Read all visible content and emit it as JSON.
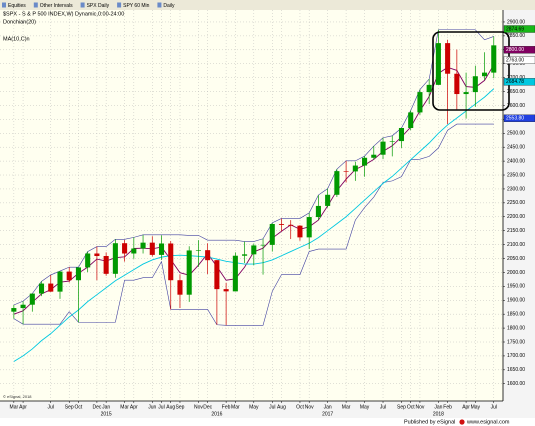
{
  "toolbar": {
    "items": [
      "Equities",
      "Other Intervals",
      "SPX Daily",
      "SPY 60 Min",
      "Daily"
    ]
  },
  "footer": {
    "published": "Published by eSignal",
    "site": "www.esignal.com",
    "copyright": "© eSignal, 2018"
  },
  "chart_data": {
    "type": "candlestick",
    "title": "$SPX - S & P 500 INDEX,W) Dynamic,0:00-24:00",
    "studies": [
      {
        "label": "Donchian(20)",
        "color": "#000000"
      },
      {
        "label": "MA(10,C)n",
        "color": "#00c8e0"
      }
    ],
    "categories": [
      "Mar 2014",
      "Apr 2014",
      "May 2014",
      "Jun 2014",
      "Jul 2014",
      "Aug 2014",
      "Sep 2014",
      "Oct 2014",
      "Nov 2014",
      "Dec 2014",
      "Jan 2015",
      "Feb 2015",
      "Mar 2015",
      "Apr 2015",
      "May 2015",
      "Jun 2015",
      "Jul 2015",
      "Aug 2015",
      "Sep 2015",
      "Oct 2015",
      "Nov 2015",
      "Dec 2015",
      "Jan 2016",
      "Feb 2016",
      "Mar 2016",
      "Apr 2016",
      "May 2016",
      "Jun 2016",
      "Jul 2016",
      "Aug 2016",
      "Sep 2016",
      "Oct 2016",
      "Nov 2016",
      "Dec 2016",
      "Jan 2017",
      "Feb 2017",
      "Mar 2017",
      "Apr 2017",
      "May 2017",
      "Jun 2017",
      "Jul 2017",
      "Aug 2017",
      "Sep 2017",
      "Oct 2017",
      "Nov 2017",
      "Dec 2017",
      "Jan 2018",
      "Feb 2018",
      "Mar 2018",
      "Apr 2018",
      "May 2018",
      "Jun 2018",
      "Jul 2018"
    ],
    "open": [
      1859,
      1872,
      1884,
      1924,
      1960,
      1931,
      2003,
      1972,
      2018,
      2068,
      2059,
      1995,
      2105,
      2068,
      2086,
      2107,
      2063,
      2104,
      1972,
      1920,
      2079,
      2080,
      2044,
      1940,
      1932,
      2060,
      2065,
      2097,
      2099,
      2174,
      2171,
      2168,
      2126,
      2199,
      2239,
      2279,
      2364,
      2363,
      2384,
      2412,
      2423,
      2470,
      2472,
      2519,
      2575,
      2648,
      2674,
      2824,
      2714,
      2641,
      2648,
      2705,
      2718
    ],
    "high": [
      1883,
      1897,
      1924,
      1968,
      1991,
      2005,
      2019,
      2018,
      2075,
      2093,
      2072,
      2119,
      2117,
      2126,
      2135,
      2130,
      2133,
      2113,
      1993,
      2094,
      2116,
      2105,
      2044,
      1963,
      2072,
      2111,
      2104,
      2121,
      2178,
      2194,
      2188,
      2170,
      2214,
      2278,
      2301,
      2371,
      2401,
      2398,
      2418,
      2454,
      2484,
      2491,
      2519,
      2582,
      2657,
      2695,
      2872,
      2836,
      2801,
      2718,
      2743,
      2791,
      2848
    ],
    "low": [
      1834,
      1814,
      1859,
      1915,
      1930,
      1905,
      1964,
      1821,
      2001,
      1972,
      1988,
      1981,
      2039,
      2049,
      2068,
      2057,
      2045,
      1867,
      1872,
      1894,
      2020,
      1994,
      1812,
      1810,
      1932,
      2034,
      2026,
      1992,
      2075,
      2148,
      2120,
      2114,
      2084,
      2188,
      2233,
      2271,
      2323,
      2329,
      2344,
      2405,
      2407,
      2417,
      2447,
      2511,
      2566,
      2605,
      2674,
      2533,
      2586,
      2553,
      2595,
      2691,
      2698
    ],
    "close": [
      1872,
      1884,
      1924,
      1960,
      1931,
      2003,
      1972,
      2018,
      2068,
      2059,
      1995,
      2105,
      2068,
      2086,
      2107,
      2063,
      2104,
      1972,
      1920,
      2079,
      2080,
      2044,
      1940,
      1932,
      2060,
      2065,
      2097,
      2099,
      2174,
      2171,
      2168,
      2126,
      2199,
      2239,
      2279,
      2364,
      2363,
      2384,
      2412,
      2423,
      2470,
      2472,
      2519,
      2575,
      2648,
      2674,
      2824,
      2714,
      2641,
      2648,
      2705,
      2718,
      2816
    ],
    "up_color": "#009900",
    "down_color": "#cc0000",
    "series": [
      {
        "name": "Donchian upper",
        "color": "#4040a0",
        "values": [
          1883,
          1897,
          1924,
          1968,
          1991,
          2005,
          2019,
          2019,
          2075,
          2093,
          2093,
          2119,
          2119,
          2126,
          2135,
          2135,
          2135,
          2135,
          2135,
          2133,
          2133,
          2116,
          2116,
          2116,
          2116,
          2111,
          2111,
          2121,
          2178,
          2194,
          2194,
          2194,
          2214,
          2278,
          2301,
          2371,
          2401,
          2401,
          2418,
          2454,
          2484,
          2491,
          2519,
          2582,
          2657,
          2695,
          2872,
          2872,
          2872,
          2872,
          2872,
          2836,
          2848
        ]
      },
      {
        "name": "Donchian lower",
        "color": "#4040a0",
        "values": [
          1834,
          1814,
          1814,
          1814,
          1814,
          1814,
          1859,
          1821,
          1821,
          1821,
          1821,
          1821,
          1972,
          1972,
          1981,
          1981,
          2039,
          1867,
          1867,
          1867,
          1867,
          1867,
          1812,
          1810,
          1810,
          1810,
          1810,
          1810,
          1932,
          1992,
          1992,
          1992,
          2075,
          2084,
          2084,
          2084,
          2084,
          2188,
          2233,
          2271,
          2323,
          2329,
          2344,
          2405,
          2407,
          2417,
          2447,
          2511,
          2533,
          2533,
          2533,
          2533,
          2533
        ]
      },
      {
        "name": "MA fast",
        "color": "#800060",
        "values": [
          1850,
          1862,
          1893,
          1923,
          1938,
          1965,
          1969,
          1997,
          2019,
          2048,
          2041,
          2053,
          2056,
          2086,
          2087,
          2085,
          2091,
          2046,
          1999,
          1990,
          2026,
          2068,
          2021,
          1972,
          1977,
          2019,
          2074,
          2087,
          2123,
          2148,
          2171,
          2155,
          2164,
          2188,
          2239,
          2294,
          2335,
          2370,
          2386,
          2406,
          2435,
          2455,
          2487,
          2522,
          2581,
          2632,
          2715,
          2737,
          2726,
          2668,
          2665,
          2690,
          2746
        ]
      },
      {
        "name": "MA slow",
        "color": "#00c8e0",
        "values": [
          1680,
          1700,
          1725,
          1755,
          1780,
          1810,
          1840,
          1865,
          1895,
          1920,
          1945,
          1970,
          1990,
          2010,
          2030,
          2045,
          2055,
          2060,
          2062,
          2060,
          2058,
          2055,
          2048,
          2040,
          2035,
          2030,
          2030,
          2035,
          2045,
          2060,
          2075,
          2090,
          2105,
          2125,
          2150,
          2175,
          2200,
          2230,
          2260,
          2290,
          2320,
          2345,
          2375,
          2405,
          2435,
          2465,
          2500,
          2530,
          2555,
          2580,
          2605,
          2630,
          2660
        ]
      }
    ],
    "price_tags": [
      {
        "value": 2874.69,
        "label": "2874.69",
        "color": "#18b818"
      },
      {
        "value": 2800,
        "label": "2800.00",
        "color": "#800060"
      },
      {
        "value": 2763,
        "label": "2763.00",
        "color": "#ffffff"
      },
      {
        "value": 2684.78,
        "label": "2684.78",
        "color": "#00c8e0"
      },
      {
        "value": 2553.8,
        "label": "2553.80",
        "color": "#2040e0"
      }
    ],
    "ylim": [
      1538,
      2943
    ],
    "yticks": [
      {
        "value": 1600,
        "label": "1600.00"
      },
      {
        "value": 1650,
        "label": "1650.00"
      },
      {
        "value": 1700,
        "label": "1700.00"
      },
      {
        "value": 1750,
        "label": "1750.00"
      },
      {
        "value": 1800,
        "label": "1800.00"
      },
      {
        "value": 1850,
        "label": "1850.00"
      },
      {
        "value": 1900,
        "label": "1900.00"
      },
      {
        "value": 1950,
        "label": "1950.00"
      },
      {
        "value": 2000,
        "label": "2000.00"
      },
      {
        "value": 2050,
        "label": "2050.00"
      },
      {
        "value": 2100,
        "label": "2100.00"
      },
      {
        "value": 2150,
        "label": "2150.00"
      },
      {
        "value": 2200,
        "label": "2200.00"
      },
      {
        "value": 2250,
        "label": "2250.00"
      },
      {
        "value": 2300,
        "label": "2300.00"
      },
      {
        "value": 2350,
        "label": "2350.00"
      },
      {
        "value": 2400,
        "label": "2400.00"
      },
      {
        "value": 2450,
        "label": "2450.00"
      },
      {
        "value": 2500,
        "label": "2500.00"
      },
      {
        "value": 2550,
        "label": "2550.00"
      },
      {
        "value": 2600,
        "label": "2600.00"
      },
      {
        "value": 2650,
        "label": "2650.00"
      },
      {
        "value": 2700,
        "label": "2700.00"
      },
      {
        "value": 2750,
        "label": "2750.00"
      },
      {
        "value": 2800,
        "label": "2800.00"
      },
      {
        "value": 2850,
        "label": "2850.00"
      },
      {
        "value": 2900,
        "label": "2900.00"
      }
    ],
    "xticks": [
      {
        "value": "Mar 2014",
        "label": "Mar"
      },
      {
        "value": "Apr 2014",
        "label": "Apr"
      },
      {
        "value": "Jul 2014",
        "label": "Jul"
      },
      {
        "value": "Sep 2014",
        "label": "Sep"
      },
      {
        "value": "Oct 2014",
        "label": "Oct"
      },
      {
        "value": "Dec 2014",
        "label": "Dec"
      },
      {
        "value": "Jan 2015",
        "label": "Jan"
      },
      {
        "value": "Mar 2015",
        "label": "Mar"
      },
      {
        "value": "Apr 2015",
        "label": "Apr"
      },
      {
        "value": "Jun 2015",
        "label": "Jun"
      },
      {
        "value": "Jul 2015",
        "label": "Jul"
      },
      {
        "value": "Aug 2015",
        "label": "Aug"
      },
      {
        "value": "Sep 2015",
        "label": "Sep"
      },
      {
        "value": "Nov 2015",
        "label": "Nov"
      },
      {
        "value": "Dec 2015",
        "label": "Dec"
      },
      {
        "value": "Feb 2016",
        "label": "Feb"
      },
      {
        "value": "Mar 2016",
        "label": "Mar"
      },
      {
        "value": "May 2016",
        "label": "May"
      },
      {
        "value": "Jul 2016",
        "label": "Jul"
      },
      {
        "value": "Aug 2016",
        "label": "Aug"
      },
      {
        "value": "Oct 2016",
        "label": "Oct"
      },
      {
        "value": "Nov 2016",
        "label": "Nov"
      },
      {
        "value": "Jan 2017",
        "label": "Jan"
      },
      {
        "value": "Mar 2017",
        "label": "Mar"
      },
      {
        "value": "May 2017",
        "label": "May"
      },
      {
        "value": "Jul 2017",
        "label": "Jul"
      },
      {
        "value": "Sep 2017",
        "label": "Sep"
      },
      {
        "value": "Oct 2017",
        "label": "Oct"
      },
      {
        "value": "Nov 2017",
        "label": "Nov"
      },
      {
        "value": "Jan 2018",
        "label": "Jan"
      },
      {
        "value": "Feb 2018",
        "label": "Feb"
      },
      {
        "value": "Apr 2018",
        "label": "Apr"
      },
      {
        "value": "May 2018",
        "label": "May"
      },
      {
        "value": "Jul 2018",
        "label": "Jul"
      }
    ],
    "xyears": [
      {
        "value": "Jan 2015",
        "label": "2015"
      },
      {
        "value": "Jan 2016",
        "label": "2016"
      },
      {
        "value": "Jan 2017",
        "label": "2017"
      },
      {
        "value": "Jan 2018",
        "label": "2018"
      }
    ],
    "grid": true
  }
}
